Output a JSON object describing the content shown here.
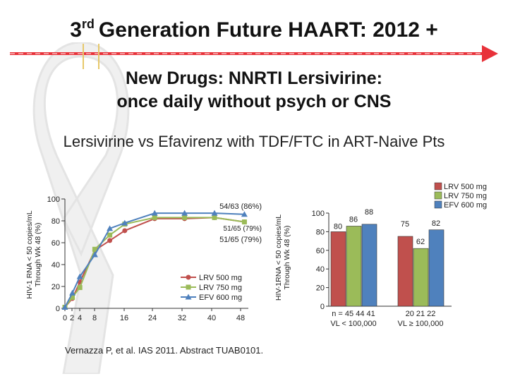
{
  "title": {
    "sup": "rd",
    "prefix": "3",
    "rest": "Generation Future HAART: 2012 +"
  },
  "subtitle": {
    "line1": "New Drugs: NNRTI Lersivirine:",
    "line2": "once daily without psych or CNS"
  },
  "heading": "Lersivirine vs Efavirenz with TDF/FTC in ART-Naive Pts",
  "citation": "Vernazza P, et al. IAS 2011. Abstract TUAB0101.",
  "colors": {
    "lrv500": "#c0504d",
    "lrv750": "#9bbb59",
    "efv600": "#4f81bd",
    "arrow": "#e8323a"
  },
  "chart_data": [
    {
      "type": "line",
      "ylabel": "HIV-1 RNA < 50 copies/mL Through Wk 48 (%)",
      "xlabel": "",
      "x_ticks": [
        "0",
        "2",
        "4",
        "8",
        "16",
        "24",
        "32",
        "40",
        "48"
      ],
      "y_ticks": [
        "0",
        "20",
        "40",
        "60",
        "80",
        "100"
      ],
      "ylim": [
        0,
        100
      ],
      "x": [
        0,
        2,
        4,
        8,
        12,
        16,
        24,
        32,
        40,
        48
      ],
      "series": [
        {
          "name": "LRV 500 mg",
          "color": "#c0504d",
          "values": [
            1,
            9,
            24,
            53,
            62,
            71,
            82,
            82,
            83,
            79
          ]
        },
        {
          "name": "LRV 750 mg",
          "color": "#9bbb59",
          "values": [
            1,
            10,
            19,
            54,
            67,
            77,
            83,
            83,
            83,
            79
          ]
        },
        {
          "name": "EFV 600 mg",
          "color": "#4f81bd",
          "values": [
            1,
            14,
            29,
            49,
            73,
            78,
            87,
            87,
            87,
            86
          ]
        }
      ],
      "annotations": [
        {
          "text": "54/63 (86%)",
          "x": 40,
          "y": 91
        },
        {
          "text": "51/65 (79%)",
          "x": 40,
          "y": 72
        },
        {
          "text": "51/65 (79%)",
          "x": 40,
          "y": 62
        }
      ],
      "legend": "bottom-right"
    },
    {
      "type": "bar",
      "ylabel": "HIV-1RNA < 50 copies/mL Through Wk 48 (%)",
      "y_ticks": [
        "0",
        "20",
        "40",
        "60",
        "80",
        "100"
      ],
      "ylim": [
        0,
        100
      ],
      "groups": [
        {
          "n_label": "n = 45   44   41",
          "label": "VL < 100,000",
          "values": [
            80,
            86,
            88
          ]
        },
        {
          "n_label": "20   21   22",
          "label": "VL ≥ 100,000",
          "values": [
            75,
            62,
            82
          ]
        }
      ],
      "series": [
        {
          "name": "LRV 500 mg",
          "color": "#c0504d"
        },
        {
          "name": "LRV 750 mg",
          "color": "#9bbb59"
        },
        {
          "name": "EFV 600 mg",
          "color": "#4f81bd"
        }
      ],
      "legend": "top-right"
    }
  ]
}
